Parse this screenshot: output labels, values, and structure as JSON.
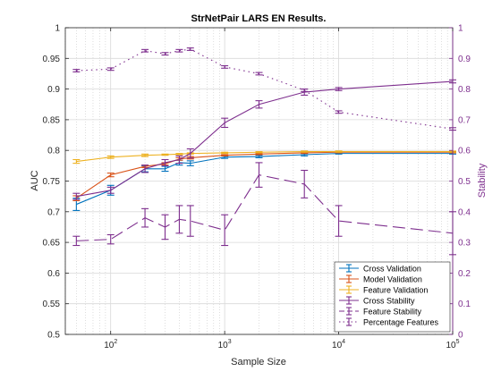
{
  "chart_data": {
    "type": "line",
    "title": "StrNetPair LARS EN Results.",
    "xlabel": "Sample Size",
    "ylabel_left": "AUC",
    "ylabel_right": "Stability",
    "x_scale": "log",
    "xlim": [
      40,
      100000
    ],
    "ylim_left": [
      0.5,
      1.0
    ],
    "ylim_right": [
      0,
      1
    ],
    "grid": true,
    "minor_grid": true,
    "legend_position": "bottom-right",
    "x_ticks": [
      {
        "value": 100,
        "label": "10²"
      },
      {
        "value": 1000,
        "label": "10³"
      },
      {
        "value": 10000,
        "label": "10⁴"
      },
      {
        "value": 100000,
        "label": "10⁵"
      }
    ],
    "y_ticks_left": [
      "0.5",
      "0.55",
      "0.6",
      "0.65",
      "0.7",
      "0.75",
      "0.8",
      "0.85",
      "0.9",
      "0.95",
      "1"
    ],
    "y_ticks_right": [
      "0",
      "0.1",
      "0.2",
      "0.3",
      "0.4",
      "0.5",
      "0.6",
      "0.7",
      "0.8",
      "0.9",
      "1"
    ],
    "x": [
      50,
      100,
      200,
      300,
      400,
      500,
      1000,
      2000,
      5000,
      10000,
      100000
    ],
    "series": [
      {
        "name": "Cross Validation",
        "axis": "left",
        "color": "#0072bd",
        "style": "solid",
        "values": [
          0.712,
          0.735,
          0.77,
          0.77,
          0.78,
          0.779,
          0.789,
          0.79,
          0.793,
          0.795,
          0.795
        ],
        "errors": [
          0.01,
          0.008,
          0.005,
          0.004,
          0.004,
          0.004,
          0.002,
          0.002,
          0.002,
          0.001,
          0.001
        ]
      },
      {
        "name": "Model Validation",
        "axis": "left",
        "color": "#d95319",
        "style": "solid",
        "values": [
          0.722,
          0.76,
          0.774,
          0.778,
          0.786,
          0.788,
          0.792,
          0.794,
          0.796,
          0.797,
          0.797
        ],
        "errors": [
          0.004,
          0.003,
          0.002,
          0.002,
          0.002,
          0.002,
          0.001,
          0.001,
          0.001,
          0.001,
          0.001
        ]
      },
      {
        "name": "Feature Validation",
        "axis": "left",
        "color": "#edb120",
        "style": "solid",
        "values": [
          0.782,
          0.789,
          0.792,
          0.793,
          0.794,
          0.795,
          0.796,
          0.797,
          0.798,
          0.798,
          0.798
        ],
        "errors": [
          0.003,
          0.002,
          0.002,
          0.001,
          0.001,
          0.001,
          0.001,
          0.001,
          0.001,
          0.001,
          0.001
        ]
      },
      {
        "name": "Cross Stability",
        "axis": "right",
        "color": "#7e2f8e",
        "style": "solid",
        "values": [
          0.45,
          0.47,
          0.54,
          0.56,
          0.57,
          0.59,
          0.69,
          0.75,
          0.79,
          0.8,
          0.825
        ],
        "errors": [
          0.01,
          0.01,
          0.012,
          0.01,
          0.012,
          0.015,
          0.015,
          0.012,
          0.01,
          0.005,
          0.005
        ]
      },
      {
        "name": "Feature Stability",
        "axis": "right",
        "color": "#7e2f8e",
        "style": "dashed",
        "values": [
          0.305,
          0.31,
          0.38,
          0.35,
          0.375,
          0.37,
          0.34,
          0.52,
          0.49,
          0.37,
          0.33
        ],
        "errors": [
          0.015,
          0.015,
          0.03,
          0.04,
          0.045,
          0.05,
          0.05,
          0.04,
          0.045,
          0.05,
          0.07
        ]
      },
      {
        "name": "Percentage Features",
        "axis": "right",
        "color": "#7e2f8e",
        "style": "dotted",
        "values": [
          0.86,
          0.865,
          0.925,
          0.915,
          0.925,
          0.93,
          0.872,
          0.85,
          0.796,
          0.725,
          0.67
        ],
        "errors": [
          0.004,
          0.004,
          0.004,
          0.004,
          0.004,
          0.004,
          0.004,
          0.004,
          0.004,
          0.004,
          0.004
        ]
      }
    ]
  }
}
